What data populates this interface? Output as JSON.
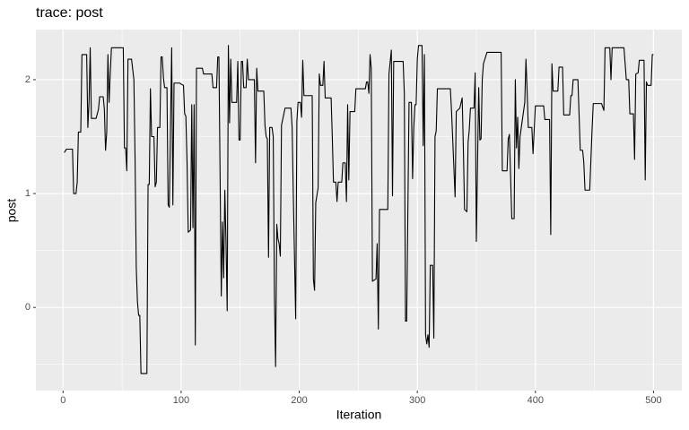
{
  "chart_data": {
    "type": "line",
    "title": "trace: post",
    "xlabel": "Iteration",
    "ylabel": "post",
    "x": [
      1,
      3,
      8,
      9,
      11,
      12,
      13,
      15,
      16,
      20,
      21,
      22,
      23,
      24,
      28,
      30,
      31,
      34,
      35,
      36,
      37,
      38,
      39,
      40,
      41,
      51,
      52,
      53,
      54,
      55,
      58,
      60,
      61,
      62,
      63,
      64,
      65,
      66,
      71,
      72,
      73,
      74,
      75,
      77,
      78,
      79,
      80,
      82,
      83,
      84,
      85,
      86,
      88,
      89,
      90,
      91,
      92,
      93,
      94,
      99,
      100,
      102,
      103,
      104,
      105,
      106,
      108,
      109,
      110,
      111,
      112,
      113,
      118,
      119,
      126,
      127,
      130,
      131,
      132,
      134,
      135,
      136,
      137,
      138,
      139,
      140,
      141,
      142,
      143,
      147,
      148,
      149,
      150,
      151,
      152,
      153,
      155,
      156,
      157,
      162,
      163,
      164,
      165,
      170,
      171,
      172,
      173,
      174,
      175,
      177,
      178,
      179,
      180,
      181,
      182,
      183,
      184,
      185,
      187,
      188,
      193,
      194,
      195,
      197,
      198,
      199,
      201,
      202,
      203,
      204,
      211,
      212,
      213,
      214,
      216,
      217,
      218,
      220,
      221,
      222,
      227,
      228,
      229,
      231,
      232,
      233,
      236,
      237,
      239,
      240,
      241,
      242,
      243,
      247,
      248,
      256,
      257,
      258,
      259,
      260,
      261,
      262,
      265,
      266,
      267,
      268,
      275,
      276,
      278,
      279,
      280,
      288,
      289,
      290,
      291,
      293,
      295,
      296,
      297,
      298,
      299,
      300,
      301,
      304,
      305,
      306,
      307,
      308,
      309,
      310,
      311,
      313,
      314,
      315,
      316,
      317,
      328,
      329,
      332,
      333,
      336,
      338,
      339,
      340,
      342,
      343,
      344,
      345,
      348,
      349,
      350,
      352,
      353,
      354,
      355,
      356,
      359,
      371,
      372,
      376,
      377,
      378,
      380,
      382,
      383,
      384,
      385,
      386,
      387,
      391,
      392,
      393,
      394,
      397,
      398,
      400,
      407,
      408,
      412,
      413,
      414,
      415,
      419,
      420,
      423,
      424,
      429,
      430,
      431,
      432,
      436,
      438,
      440,
      441,
      442,
      446,
      448,
      449,
      456,
      458,
      459,
      463,
      464,
      465,
      475,
      477,
      479,
      480,
      483,
      484,
      485,
      487,
      488,
      492,
      493,
      494,
      495,
      498,
      499,
      500
    ],
    "values": [
      1.36,
      1.39,
      1.39,
      1.0,
      1.0,
      1.1,
      1.54,
      1.54,
      2.22,
      2.22,
      1.58,
      1.8,
      2.28,
      1.66,
      1.66,
      1.74,
      1.85,
      1.85,
      1.74,
      1.38,
      1.54,
      2.22,
      1.8,
      2.06,
      2.28,
      2.28,
      1.4,
      1.4,
      1.2,
      2.18,
      2.18,
      2.0,
      1.3,
      0.35,
      0.05,
      -0.07,
      -0.07,
      -0.58,
      -0.58,
      1.08,
      1.08,
      1.92,
      1.5,
      1.5,
      1.06,
      1.1,
      1.58,
      1.58,
      2.2,
      2.2,
      2.02,
      1.93,
      1.93,
      0.9,
      0.88,
      1.58,
      2.28,
      0.9,
      1.97,
      1.97,
      1.96,
      1.95,
      1.7,
      1.68,
      1.28,
      0.66,
      0.68,
      1.78,
      0.7,
      1.78,
      -0.33,
      2.1,
      2.1,
      2.05,
      2.05,
      1.93,
      1.93,
      2.2,
      2.2,
      0.1,
      0.75,
      0.26,
      1.03,
      0.58,
      -0.03,
      2.3,
      1.62,
      2.18,
      1.8,
      1.8,
      2.16,
      1.47,
      1.47,
      2.16,
      2.16,
      1.93,
      1.93,
      2.18,
      2.0,
      2.0,
      1.27,
      2.1,
      1.9,
      1.9,
      1.6,
      1.5,
      1.48,
      0.44,
      1.58,
      1.58,
      1.5,
      0.1,
      -0.52,
      0.73,
      0.6,
      0.56,
      0.45,
      1.6,
      1.7,
      1.75,
      1.75,
      1.58,
      0.98,
      -0.1,
      1.63,
      1.8,
      1.8,
      1.67,
      2.17,
      1.86,
      1.86,
      0.25,
      0.15,
      0.92,
      1.05,
      2.05,
      1.95,
      1.95,
      2.16,
      1.84,
      1.84,
      1.5,
      1.1,
      1.1,
      0.93,
      1.1,
      1.1,
      1.27,
      1.27,
      0.93,
      1.78,
      1.12,
      1.72,
      1.72,
      1.92,
      1.92,
      1.98,
      1.98,
      1.88,
      2.22,
      2.1,
      0.23,
      0.25,
      0.56,
      -0.19,
      0.86,
      0.86,
      2.05,
      2.26,
      0.98,
      2.16,
      2.16,
      1.88,
      -0.12,
      -0.12,
      1.8,
      1.8,
      1.13,
      1.58,
      1.78,
      1.78,
      2.18,
      2.3,
      2.3,
      1.42,
      2.22,
      -0.24,
      -0.32,
      -0.24,
      -0.35,
      0.37,
      0.37,
      -0.27,
      1.5,
      1.55,
      1.92,
      1.92,
      1.72,
      0.97,
      1.72,
      1.75,
      1.84,
      1.4,
      0.86,
      0.84,
      1.45,
      1.56,
      1.75,
      1.75,
      2.06,
      0.58,
      1.93,
      1.47,
      1.48,
      2.0,
      2.14,
      2.24,
      2.24,
      1.2,
      1.2,
      1.48,
      1.52,
      0.78,
      0.78,
      2.0,
      1.4,
      1.67,
      1.22,
      1.5,
      1.8,
      2.18,
      1.9,
      1.58,
      1.58,
      1.35,
      1.77,
      1.77,
      1.65,
      1.65,
      0.64,
      2.14,
      1.9,
      1.9,
      2.11,
      2.11,
      1.69,
      1.69,
      1.86,
      1.86,
      2.0,
      2.0,
      1.38,
      1.38,
      1.27,
      1.03,
      1.03,
      1.56,
      1.79,
      1.79,
      1.73,
      2.28,
      2.28,
      2.0,
      2.28,
      2.28,
      2.0,
      2.0,
      1.7,
      1.7,
      1.3,
      2.05,
      2.06,
      2.17,
      2.17,
      1.12,
      1.98,
      1.95,
      1.95,
      2.22,
      2.22
    ],
    "color": "#000000",
    "xlim": [
      -23,
      524
    ],
    "ylim": [
      -0.73,
      2.44
    ],
    "xticks": [
      0,
      100,
      200,
      300,
      400,
      500
    ],
    "yticks": [
      0,
      1,
      2
    ],
    "minor_xticks": [
      50,
      150,
      250,
      350,
      450
    ],
    "minor_yticks": [
      -0.5,
      0.5,
      1.5
    ],
    "grid": true,
    "background": "#ebebeb"
  }
}
